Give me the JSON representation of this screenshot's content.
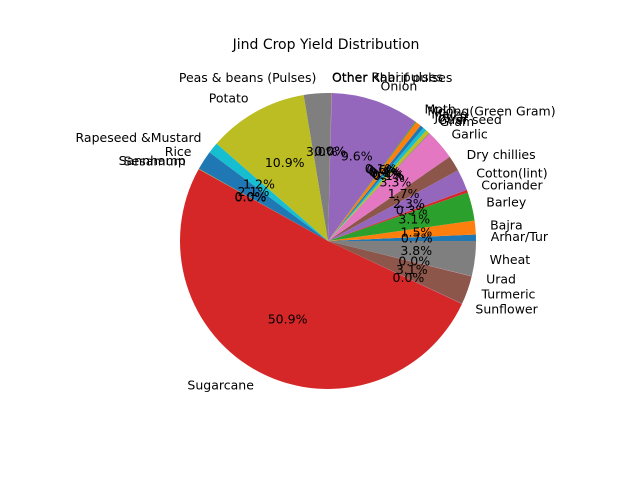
{
  "chart_data": {
    "type": "pie",
    "title": "Jind Crop Yield Distribution",
    "start_angle_deg": 0,
    "direction": "counterclockwise",
    "slices": [
      {
        "label": "Arhar/Tur",
        "pct_label": "0.7%",
        "value": 0.7,
        "color": "#1f77b4"
      },
      {
        "label": "Bajra",
        "pct_label": "1.5%",
        "value": 1.5,
        "color": "#ff7f0e"
      },
      {
        "label": "Barley",
        "pct_label": "3.1%",
        "value": 3.1,
        "color": "#2ca02c"
      },
      {
        "label": "Coriander",
        "pct_label": "0.3%",
        "value": 0.3,
        "color": "#d62728"
      },
      {
        "label": "Cotton(lint)",
        "pct_label": "2.3%",
        "value": 2.3,
        "color": "#9467bd"
      },
      {
        "label": "Dry chillies",
        "pct_label": "1.7%",
        "value": 1.7,
        "color": "#8c564b"
      },
      {
        "label": "Garlic",
        "pct_label": "3.3%",
        "value": 3.3,
        "color": "#e377c2"
      },
      {
        "label": "Gram",
        "pct_label": "0.1%",
        "value": 0.1,
        "color": "#7f7f7f"
      },
      {
        "label": "Guar seed",
        "pct_label": "0.4%",
        "value": 0.4,
        "color": "#bcbd22"
      },
      {
        "label": "Jowar",
        "pct_label": "0.4%",
        "value": 0.4,
        "color": "#17becf"
      },
      {
        "label": "Maize",
        "pct_label": "0.4%",
        "value": 0.4,
        "color": "#1f77b4"
      },
      {
        "label": "Moong(Green Gram)",
        "pct_label": "0.6%",
        "value": 0.6,
        "color": "#ff7f0e"
      },
      {
        "label": "Moth",
        "pct_label": "0.1%",
        "value": 0.1,
        "color": "#2ca02c"
      },
      {
        "label": "Onion",
        "pct_label": "9.6%",
        "value": 9.6,
        "color": "#9467bd"
      },
      {
        "label": "Other Kharif pulses",
        "pct_label": "0.0%",
        "value": 0.02,
        "color": "#8c564b"
      },
      {
        "label": "Other Rabi pulses",
        "pct_label": "0.0%",
        "value": 0.02,
        "color": "#e377c2"
      },
      {
        "label": "Peas & beans (Pulses)",
        "pct_label": "3.0%",
        "value": 3.0,
        "color": "#7f7f7f"
      },
      {
        "label": "Potato",
        "pct_label": "10.9%",
        "value": 10.9,
        "color": "#bcbd22"
      },
      {
        "label": "Rapeseed &Mustard",
        "pct_label": "1.2%",
        "value": 1.2,
        "color": "#17becf"
      },
      {
        "label": "Rice",
        "pct_label": "2.1%",
        "value": 2.1,
        "color": "#1f77b4"
      },
      {
        "label": "Sannhamp",
        "pct_label": "0.0%",
        "value": 0.02,
        "color": "#ff7f0e"
      },
      {
        "label": "Sesamum",
        "pct_label": "0.0%",
        "value": 0.03,
        "color": "#2ca02c"
      },
      {
        "label": "Sugarcane",
        "pct_label": "50.9%",
        "value": 50.9,
        "color": "#d62728"
      },
      {
        "label": "Sunflower",
        "pct_label": "0.0%",
        "value": 0.03,
        "color": "#9467bd"
      },
      {
        "label": "Turmeric",
        "pct_label": "3.1%",
        "value": 3.1,
        "color": "#8c564b"
      },
      {
        "label": "Urad",
        "pct_label": "0.0%",
        "value": 0.03,
        "color": "#e377c2"
      },
      {
        "label": "Wheat",
        "pct_label": "3.8%",
        "value": 3.8,
        "color": "#7f7f7f"
      }
    ]
  }
}
